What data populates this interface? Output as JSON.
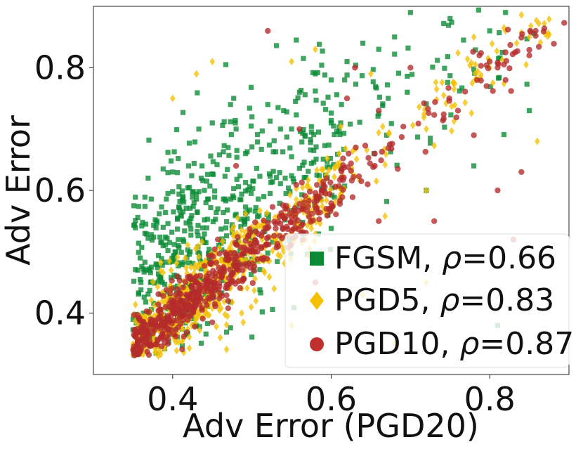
{
  "chart_data": {
    "type": "scatter",
    "title": "",
    "xlabel": "Adv Error (PGD20)",
    "ylabel": "Adv Error",
    "xlim": [
      0.3,
      0.9
    ],
    "ylim": [
      0.3,
      0.9
    ],
    "xticks": [
      0.4,
      0.6,
      0.8
    ],
    "yticks": [
      0.4,
      0.6,
      0.8
    ],
    "xtick_labels": [
      "0.4",
      "0.6",
      "0.8"
    ],
    "ytick_labels": [
      "0.4",
      "0.6",
      "0.8"
    ],
    "grid": false,
    "legend_position": "bottom-right",
    "series": [
      {
        "name": "FGSM",
        "rho": "0.66",
        "label_prefix": "FGSM, ",
        "label_suffix": "=0.66",
        "marker": "square",
        "color": "#0a8a35",
        "legend_color": "#0a8a35",
        "generator": {
          "seed": 11,
          "count": 650,
          "slope": 0.95,
          "offset": 0.07,
          "noise": 0.075
        },
        "points": [
          [
            0.35,
            0.39
          ],
          [
            0.36,
            0.45
          ],
          [
            0.37,
            0.4
          ],
          [
            0.38,
            0.55
          ],
          [
            0.4,
            0.63
          ],
          [
            0.42,
            0.64
          ],
          [
            0.45,
            0.71
          ],
          [
            0.48,
            0.7
          ],
          [
            0.5,
            0.72
          ],
          [
            0.52,
            0.74
          ],
          [
            0.54,
            0.73
          ],
          [
            0.56,
            0.76
          ],
          [
            0.58,
            0.79
          ],
          [
            0.6,
            0.78
          ],
          [
            0.62,
            0.81
          ],
          [
            0.64,
            0.84
          ],
          [
            0.66,
            0.83
          ],
          [
            0.68,
            0.85
          ],
          [
            0.7,
            0.89
          ],
          [
            0.75,
            0.88
          ],
          [
            0.8,
            0.86
          ],
          [
            0.82,
            0.89
          ],
          [
            0.85,
            0.73
          ],
          [
            0.78,
            0.64
          ],
          [
            0.81,
            0.38
          ],
          [
            0.72,
            0.6
          ],
          [
            0.67,
            0.69
          ],
          [
            0.6,
            0.71
          ],
          [
            0.55,
            0.7
          ],
          [
            0.44,
            0.6
          ]
        ]
      },
      {
        "name": "PGD5",
        "rho": "0.83",
        "label_prefix": "PGD5, ",
        "label_suffix": "=0.83",
        "marker": "diamond",
        "color": "#f5c000",
        "legend_color": "#f5c000",
        "generator": {
          "seed": 23,
          "count": 650,
          "slope": 1.0,
          "offset": 0.0,
          "noise": 0.035
        },
        "points": [
          [
            0.4,
            0.75
          ],
          [
            0.43,
            0.79
          ],
          [
            0.45,
            0.81
          ],
          [
            0.55,
            0.81
          ],
          [
            0.58,
            0.83
          ],
          [
            0.65,
            0.79
          ],
          [
            0.72,
            0.7
          ],
          [
            0.78,
            0.85
          ],
          [
            0.82,
            0.86
          ],
          [
            0.85,
            0.85
          ],
          [
            0.86,
            0.68
          ],
          [
            0.72,
            0.6
          ],
          [
            0.72,
            0.45
          ],
          [
            0.64,
            0.43
          ],
          [
            0.68,
            0.35
          ],
          [
            0.55,
            0.38
          ],
          [
            0.46,
            0.36
          ],
          [
            0.38,
            0.35
          ],
          [
            0.35,
            0.35
          ],
          [
            0.8,
            0.8
          ]
        ]
      },
      {
        "name": "PGD10",
        "rho": "0.87",
        "label_prefix": "PGD10, ",
        "label_suffix": "=0.87",
        "marker": "circle",
        "color": "#b52a2a",
        "legend_color": "#c0302f",
        "generator": {
          "seed": 37,
          "count": 650,
          "slope": 1.0,
          "offset": 0.0,
          "noise": 0.022
        },
        "points": [
          [
            0.35,
            0.34
          ],
          [
            0.36,
            0.35
          ],
          [
            0.48,
            0.64
          ],
          [
            0.52,
            0.86
          ],
          [
            0.56,
            0.7
          ],
          [
            0.62,
            0.75
          ],
          [
            0.63,
            0.8
          ],
          [
            0.66,
            0.73
          ],
          [
            0.7,
            0.8
          ],
          [
            0.76,
            0.73
          ],
          [
            0.78,
            0.69
          ],
          [
            0.8,
            0.81
          ],
          [
            0.81,
            0.8
          ],
          [
            0.82,
            0.78
          ],
          [
            0.84,
            0.63
          ],
          [
            0.81,
            0.6
          ],
          [
            0.83,
            0.52
          ],
          [
            0.73,
            0.55
          ],
          [
            0.66,
            0.55
          ],
          [
            0.58,
            0.45
          ]
        ]
      }
    ]
  }
}
